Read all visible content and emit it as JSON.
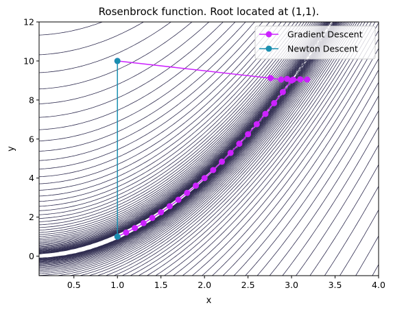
{
  "chart_data": {
    "type": "line",
    "title": "Rosenbrock function. Root located at (1,1).",
    "xlabel": "x",
    "ylabel": "y",
    "xlim": [
      0.1,
      4.0
    ],
    "ylim": [
      -1,
      12
    ],
    "x_ticks": [
      0.5,
      1.0,
      1.5,
      2.0,
      2.5,
      3.0,
      3.5,
      4.0
    ],
    "x_tick_labels": [
      "0.5",
      "1.0",
      "1.5",
      "2.0",
      "2.5",
      "3.0",
      "3.5",
      "4.0"
    ],
    "y_ticks": [
      0,
      2,
      4,
      6,
      8,
      10,
      12
    ],
    "y_tick_labels": [
      "0",
      "2",
      "4",
      "6",
      "8",
      "10",
      "12"
    ],
    "background": "contour lines of the Rosenbrock function",
    "contour_color": "#2e2b4f",
    "legend_position": "upper right",
    "series": [
      {
        "name": "Gradient Descent",
        "color": "#cc22ff",
        "points": [
          [
            1.0,
            10.0
          ],
          [
            2.76,
            9.12
          ],
          [
            2.88,
            9.05
          ],
          [
            2.95,
            9.08
          ],
          [
            3.02,
            9.05
          ],
          [
            3.1,
            9.06
          ],
          [
            3.18,
            9.05
          ],
          [
            3.0,
            9.0
          ],
          [
            2.9,
            8.41
          ],
          [
            2.8,
            7.84
          ],
          [
            2.7,
            7.29
          ],
          [
            2.6,
            6.76
          ],
          [
            2.5,
            6.25
          ],
          [
            2.4,
            5.76
          ],
          [
            2.3,
            5.29
          ],
          [
            2.2,
            4.84
          ],
          [
            2.1,
            4.41
          ],
          [
            2.0,
            4.0
          ],
          [
            1.9,
            3.61
          ],
          [
            1.8,
            3.24
          ],
          [
            1.7,
            2.89
          ],
          [
            1.6,
            2.56
          ],
          [
            1.5,
            2.25
          ],
          [
            1.4,
            1.96
          ],
          [
            1.3,
            1.69
          ],
          [
            1.2,
            1.44
          ],
          [
            1.1,
            1.21
          ],
          [
            1.0,
            1.0
          ]
        ]
      },
      {
        "name": "Newton Descent",
        "color": "#1a8fb0",
        "points": [
          [
            1.0,
            10.0
          ],
          [
            1.0,
            1.0
          ]
        ]
      }
    ]
  }
}
